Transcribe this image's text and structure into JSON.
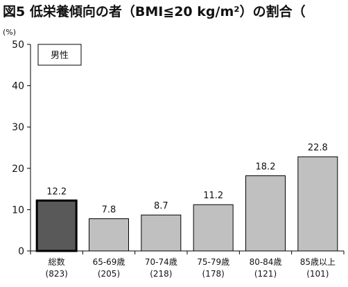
{
  "title": "図5 低栄養傾向の者（BMI≦20 kg/m²）の割合（",
  "legend_label": "男性",
  "colors": {
    "bar": "#c0c0c0",
    "highlight_bar": "#595959",
    "bar_border": "#000000",
    "axis": "#000000"
  },
  "chart_data": {
    "type": "bar",
    "title": "図5 低栄養傾向の者（BMI≦20 kg/m²）の割合（",
    "ylabel": "(%)",
    "ylim": [
      0,
      50
    ],
    "yticks": [
      0,
      10,
      20,
      30,
      40,
      50
    ],
    "grid": false,
    "legend": "top-left",
    "categories": [
      "総数",
      "65-69歳",
      "70-74歳",
      "75-79歳",
      "80-84歳",
      "85歳以上"
    ],
    "counts": [
      "(823)",
      "(205)",
      "(218)",
      "(178)",
      "(121)",
      "(101)"
    ],
    "highlight_index": 0,
    "series": [
      {
        "name": "男性",
        "values": [
          12.2,
          7.8,
          8.7,
          11.2,
          18.2,
          22.8
        ]
      }
    ],
    "value_labels": [
      "12.2",
      "7.8",
      "8.7",
      "11.2",
      "18.2",
      "22.8"
    ]
  }
}
